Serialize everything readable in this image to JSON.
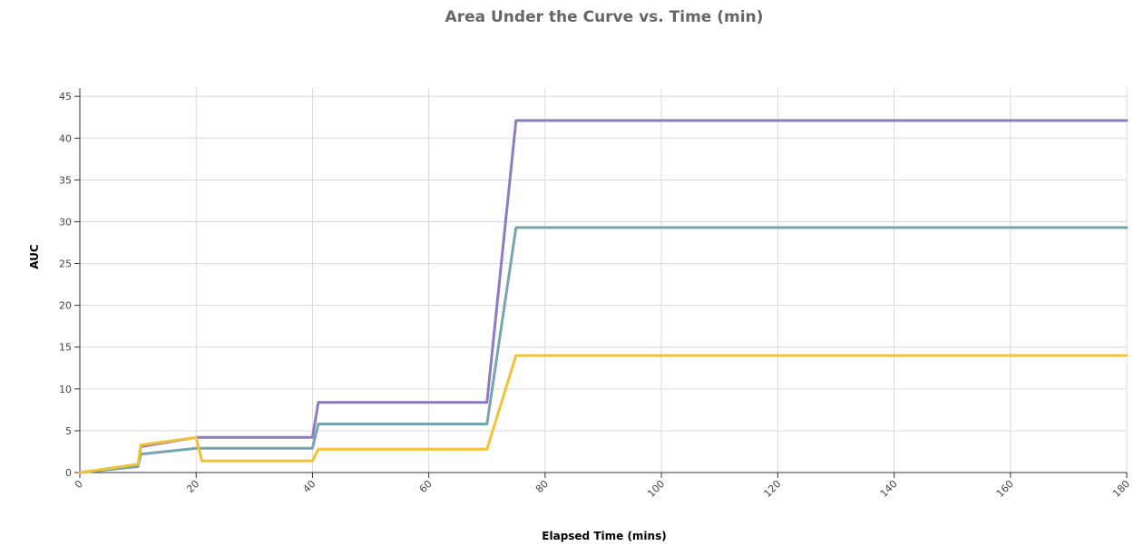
{
  "chart_data": {
    "type": "line",
    "title": "Area Under the Curve vs. Time (min)",
    "xlabel": "Elapsed Time (mins)",
    "ylabel": "AUC",
    "xlim": [
      0,
      180
    ],
    "ylim": [
      0,
      46
    ],
    "x_ticks": [
      0,
      20,
      40,
      60,
      80,
      100,
      120,
      140,
      160,
      180
    ],
    "y_ticks": [
      0,
      5,
      10,
      15,
      20,
      25,
      30,
      35,
      40,
      45
    ],
    "grid": true,
    "legend": "none",
    "series": [
      {
        "color": "#8e7cc3",
        "x": [
          0,
          10,
          10.5,
          20,
          21,
          40,
          41,
          70,
          75,
          180
        ],
        "y": [
          0,
          0.8,
          3.1,
          4.2,
          4.2,
          4.2,
          8.4,
          8.4,
          42.1,
          42.1
        ]
      },
      {
        "color": "#76a5af",
        "x": [
          0,
          10,
          10.5,
          20,
          21,
          40,
          41,
          70,
          75,
          180
        ],
        "y": [
          0,
          0.7,
          2.2,
          2.9,
          2.9,
          2.9,
          5.8,
          5.8,
          29.3,
          29.3
        ]
      },
      {
        "color": "#f1c232",
        "x": [
          0,
          10,
          10.5,
          20,
          21,
          40,
          41,
          70,
          75,
          180
        ],
        "y": [
          0,
          1.0,
          3.3,
          4.2,
          1.4,
          1.4,
          2.8,
          2.8,
          14.0,
          14.0
        ]
      }
    ]
  }
}
